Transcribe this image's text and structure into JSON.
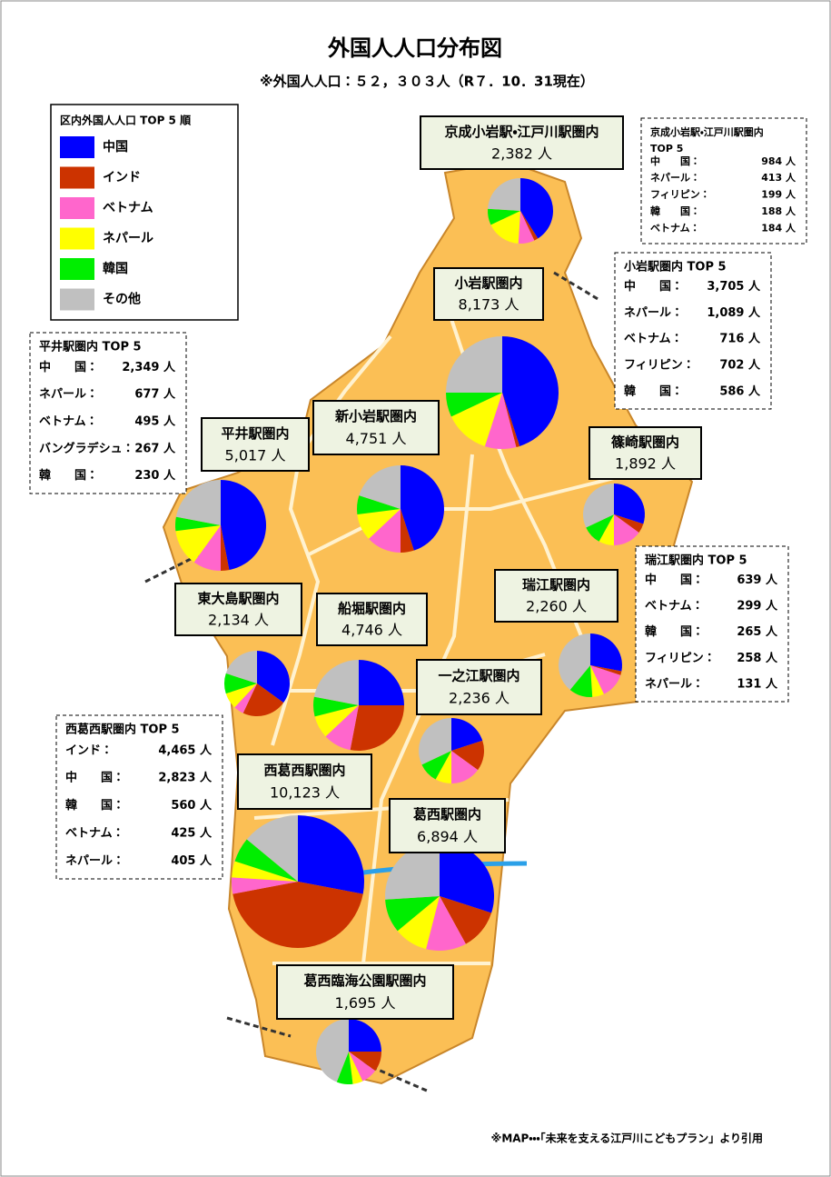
{
  "title": "外国人人口分布図",
  "subtitle": "※外国人人口：５２，３０３人（R７．10．31現在）",
  "legend": {
    "title": "区内外国人人口 TOP 5 順",
    "items": [
      {
        "name": "中国",
        "color": "#0000ff"
      },
      {
        "name": "インド",
        "color": "#cc3300"
      },
      {
        "name": "ベトナム",
        "color": "#ff66cc"
      },
      {
        "name": "ネパール",
        "color": "#ffff00"
      },
      {
        "name": "韓国",
        "color": "#00ee00"
      },
      {
        "name": "その他",
        "color": "#c0c0c0"
      }
    ]
  },
  "stations": [
    {
      "name": "京成小岩駅・江戸川駅圏内",
      "population": "2,382 人",
      "pie": [
        41,
        2,
        8,
        17,
        8,
        24
      ]
    },
    {
      "name": "小岩駅圏内",
      "population": "8,173 人",
      "pie": [
        45,
        1,
        9,
        13,
        7,
        25
      ]
    },
    {
      "name": "平井駅圏内",
      "population": "5,017 人",
      "pie": [
        47,
        3,
        10,
        13,
        5,
        22
      ]
    },
    {
      "name": "新小岩駅圏内",
      "population": "4,751 人",
      "pie": [
        45,
        5,
        13,
        10,
        7,
        20
      ]
    },
    {
      "name": "篠崎駅圏内",
      "population": "1,892 人",
      "pie": [
        30,
        5,
        15,
        8,
        10,
        32
      ]
    },
    {
      "name": "瑞江駅圏内",
      "population": "2,260 人",
      "pie": [
        28,
        2,
        13,
        6,
        12,
        39
      ]
    },
    {
      "name": "東大島駅圏内",
      "population": "2,134 人",
      "pie": [
        35,
        22,
        5,
        8,
        10,
        20
      ]
    },
    {
      "name": "船堀駅圏内",
      "population": "4,746 人",
      "pie": [
        25,
        28,
        10,
        8,
        7,
        22
      ]
    },
    {
      "name": "一之江駅圏内",
      "population": "2,236 人",
      "pie": [
        20,
        15,
        15,
        8,
        10,
        32
      ]
    },
    {
      "name": "西葛西駅圏内",
      "population": "10,123 人",
      "pie": [
        28,
        44,
        4,
        4,
        6,
        14
      ]
    },
    {
      "name": "葛西駅圏内",
      "population": "6,894 人",
      "pie": [
        30,
        12,
        12,
        10,
        10,
        26
      ]
    },
    {
      "name": "葛西臨海公園駅圏内",
      "population": "1,695 人",
      "pie": [
        25,
        10,
        8,
        5,
        8,
        44
      ]
    }
  ],
  "top5": [
    {
      "title": "京成小岩駅・江戸川駅圏内",
      "title2": "TOP 5",
      "rows": [
        [
          "中　　国：",
          "984 人"
        ],
        [
          "ネパール：",
          "413 人"
        ],
        [
          "フィリピン：",
          "199 人"
        ],
        [
          "韓　　国：",
          "188 人"
        ],
        [
          "ベトナム：",
          "184 人"
        ]
      ]
    },
    {
      "title": "小岩駅圏内 TOP 5",
      "rows": [
        [
          "中　　国：",
          "3,705 人"
        ],
        [
          "ネパール：",
          "1,089 人"
        ],
        [
          "ベトナム：",
          "716 人"
        ],
        [
          "フィリピン：",
          "702 人"
        ],
        [
          "韓　　国：",
          "586 人"
        ]
      ]
    },
    {
      "title": "平井駅圏内 TOP 5",
      "rows": [
        [
          "中　　国：",
          "2,349 人"
        ],
        [
          "ネパール：",
          "677 人"
        ],
        [
          "ベトナム：",
          "495 人"
        ],
        [
          "バングラデシュ：",
          "267 人"
        ],
        [
          "韓　　国：",
          "230 人"
        ]
      ]
    },
    {
      "title": "瑞江駅圏内 TOP 5",
      "rows": [
        [
          "中　　国：",
          "639 人"
        ],
        [
          "ベトナム：",
          "299 人"
        ],
        [
          "韓　　国：",
          "265 人"
        ],
        [
          "フィリピン：",
          "258 人"
        ],
        [
          "ネパール：",
          "131 人"
        ]
      ]
    },
    {
      "title": "西葛西駅圏内 TOP 5",
      "rows": [
        [
          "インド：",
          "4,465 人"
        ],
        [
          "中　　国：",
          "2,823 人"
        ],
        [
          "韓　　国：",
          "560 人"
        ],
        [
          "ベトナム：",
          "425 人"
        ],
        [
          "ネパール：",
          "405 人"
        ]
      ]
    }
  ],
  "footer": "※MAP・・・「未来を支える江戸川こどもプラン」より引用"
}
